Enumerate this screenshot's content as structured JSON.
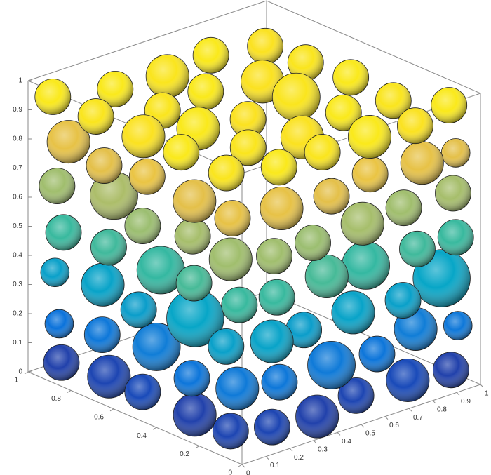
{
  "chart_data": {
    "type": "sphere3d",
    "xlim": [
      0,
      1
    ],
    "ylim": [
      0,
      1
    ],
    "zlim": [
      0,
      1
    ],
    "xticks": [
      0,
      0.1,
      0.2,
      0.3,
      0.4,
      0.5,
      0.6,
      0.7,
      0.8,
      0.9,
      1
    ],
    "yticks": [
      0,
      0.2,
      0.4,
      0.6,
      0.8,
      1
    ],
    "zticks": [
      0,
      0.1,
      0.2,
      0.3,
      0.4,
      0.5,
      0.6,
      0.7,
      0.8,
      0.9,
      1
    ],
    "colormap": [
      "#352a87",
      "#0363e1",
      "#1485d4",
      "#06a7c6",
      "#38b99e",
      "#92bf73",
      "#d9ba56",
      "#fcce2e",
      "#f9fb0e"
    ],
    "x": [
      0.06,
      0.08,
      0.05,
      0.07,
      0.05,
      0.07,
      0.05,
      0.09,
      0.06,
      0.05,
      0.05,
      0.1,
      0.06,
      0.08,
      0.05,
      0.07,
      0.05,
      0.09,
      0.06,
      0.05,
      0.06,
      0.08,
      0.05,
      0.1,
      0.05,
      0.05,
      0.07,
      0.06,
      0.05,
      0.08,
      0.06,
      0.05,
      0.08,
      0.06,
      0.05,
      0.18,
      0.36,
      0.55,
      0.74,
      0.93,
      0.22,
      0.42,
      0.62,
      0.8,
      0.95,
      0.17,
      0.34,
      0.52,
      0.72,
      0.9,
      0.2,
      0.4,
      0.6,
      0.78,
      0.95,
      0.18,
      0.36,
      0.55,
      0.75,
      0.93,
      0.22,
      0.42,
      0.6,
      0.8,
      0.95,
      0.2,
      0.4,
      0.58,
      0.78,
      0.94,
      0.25,
      0.45,
      0.65,
      0.85,
      0.22,
      0.42,
      0.64,
      0.86,
      0.25,
      0.44,
      0.66,
      0.85,
      0.24,
      0.45,
      0.65,
      0.86
    ],
    "y": [
      0.12,
      0.31,
      0.52,
      0.7,
      0.9,
      0.1,
      0.29,
      0.5,
      0.72,
      0.91,
      0.13,
      0.33,
      0.55,
      0.74,
      0.93,
      0.09,
      0.28,
      0.48,
      0.69,
      0.89,
      0.12,
      0.32,
      0.52,
      0.71,
      0.92,
      0.1,
      0.3,
      0.51,
      0.7,
      0.9,
      0.14,
      0.34,
      0.55,
      0.75,
      0.94,
      0.06,
      0.05,
      0.08,
      0.05,
      0.06,
      0.07,
      0.05,
      0.06,
      0.08,
      0.05,
      0.05,
      0.09,
      0.06,
      0.05,
      0.07,
      0.06,
      0.05,
      0.09,
      0.05,
      0.06,
      0.05,
      0.07,
      0.05,
      0.08,
      0.05,
      0.06,
      0.05,
      0.07,
      0.05,
      0.06,
      0.05,
      0.07,
      0.05,
      0.06,
      0.08,
      0.25,
      0.22,
      0.25,
      0.24,
      0.45,
      0.44,
      0.46,
      0.45,
      0.65,
      0.66,
      0.64,
      0.65,
      0.86,
      0.85,
      0.87,
      0.85
    ],
    "z": [
      0.06,
      0.05,
      0.07,
      0.06,
      0.05,
      0.21,
      0.19,
      0.22,
      0.2,
      0.18,
      0.35,
      0.37,
      0.34,
      0.36,
      0.35,
      0.5,
      0.52,
      0.49,
      0.51,
      0.5,
      0.65,
      0.66,
      0.64,
      0.67,
      0.65,
      0.8,
      0.79,
      0.81,
      0.79,
      0.8,
      0.94,
      0.95,
      0.93,
      0.94,
      0.95,
      0.06,
      0.05,
      0.06,
      0.07,
      0.05,
      0.2,
      0.21,
      0.19,
      0.22,
      0.2,
      0.36,
      0.34,
      0.36,
      0.35,
      0.37,
      0.5,
      0.52,
      0.49,
      0.51,
      0.5,
      0.65,
      0.64,
      0.66,
      0.65,
      0.66,
      0.8,
      0.79,
      0.81,
      0.8,
      0.79,
      0.95,
      0.94,
      0.95,
      0.93,
      0.95,
      0.94,
      0.93,
      0.95,
      0.94,
      0.95,
      0.93,
      0.94,
      0.95,
      0.94,
      0.95,
      0.93,
      0.94,
      0.95,
      0.94,
      0.95,
      0.93
    ],
    "r": [
      0.075,
      0.09,
      0.075,
      0.09,
      0.075,
      0.09,
      0.075,
      0.1,
      0.075,
      0.06,
      0.075,
      0.12,
      0.075,
      0.09,
      0.06,
      0.075,
      0.075,
      0.1,
      0.075,
      0.075,
      0.09,
      0.075,
      0.075,
      0.1,
      0.075,
      0.075,
      0.09,
      0.075,
      0.075,
      0.09,
      0.075,
      0.075,
      0.09,
      0.075,
      0.075,
      0.075,
      0.09,
      0.075,
      0.09,
      0.075,
      0.075,
      0.1,
      0.075,
      0.09,
      0.06,
      0.09,
      0.075,
      0.09,
      0.075,
      0.12,
      0.075,
      0.09,
      0.1,
      0.075,
      0.075,
      0.075,
      0.075,
      0.09,
      0.075,
      0.075,
      0.09,
      0.075,
      0.075,
      0.09,
      0.06,
      0.075,
      0.075,
      0.09,
      0.075,
      0.075,
      0.075,
      0.09,
      0.075,
      0.075,
      0.09,
      0.075,
      0.1,
      0.075,
      0.075,
      0.075,
      0.09,
      0.075,
      0.075,
      0.09,
      0.075,
      0.075
    ]
  }
}
